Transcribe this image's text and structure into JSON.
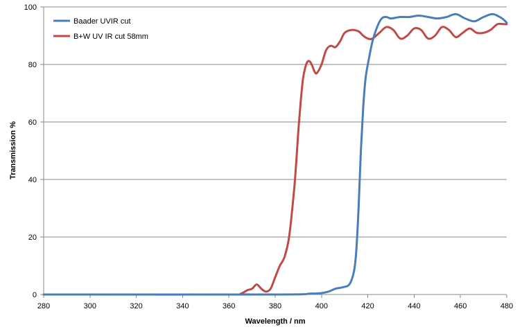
{
  "chart_data": {
    "type": "line",
    "title": "",
    "xlabel": "Wavelength / nm",
    "ylabel": "Transmission %",
    "xlim": [
      280,
      480
    ],
    "ylim": [
      0,
      100
    ],
    "xticks": [
      280,
      300,
      320,
      340,
      360,
      380,
      400,
      420,
      440,
      460,
      480
    ],
    "yticks": [
      0,
      20,
      40,
      60,
      80,
      100
    ],
    "grid": "horizontal",
    "legend_position": "top-left",
    "series": [
      {
        "name": "Baader UVIR cut",
        "color": "#4a7ebb",
        "x": [
          280,
          380,
          395,
          400,
          403,
          406,
          409,
          412,
          414,
          415,
          416,
          417,
          418,
          419,
          420,
          422,
          424,
          426,
          428,
          430,
          434,
          438,
          442,
          446,
          450,
          454,
          458,
          462,
          466,
          470,
          474,
          478,
          480
        ],
        "y": [
          0,
          0,
          0.3,
          0.5,
          1,
          2,
          2.5,
          3.5,
          8,
          15,
          30,
          50,
          65,
          75,
          80,
          88,
          93,
          96,
          96.5,
          96,
          96.5,
          96.5,
          97,
          96.5,
          96,
          96.5,
          97.5,
          96,
          95,
          96.5,
          97.5,
          96,
          94.5
        ]
      },
      {
        "name": "B+W UV IR cut 58mm",
        "color": "#be4b48",
        "x": [
          280,
          362,
          365,
          368,
          370,
          372,
          374,
          376,
          378,
          380,
          382,
          384,
          386,
          388,
          389,
          390,
          391,
          392,
          393,
          394,
          395,
          396,
          397,
          398,
          400,
          402,
          404,
          406,
          408,
          410,
          413,
          416,
          418,
          420,
          422,
          425,
          428,
          431,
          434,
          437,
          440,
          443,
          446,
          449,
          452,
          455,
          458,
          461,
          464,
          467,
          470,
          473,
          476,
          479,
          480
        ],
        "y": [
          0,
          0,
          0.2,
          1.5,
          2,
          3.5,
          2,
          1,
          2,
          6,
          10,
          13,
          20,
          35,
          45,
          57,
          67,
          75,
          79,
          81,
          81,
          79.5,
          77.5,
          77,
          80,
          85,
          86.5,
          86,
          88,
          91,
          92,
          91.5,
          90,
          89,
          89,
          91,
          93,
          92,
          89,
          90,
          92.5,
          92,
          89,
          90,
          93,
          92,
          89.5,
          91,
          92.5,
          91,
          91,
          92,
          94,
          94,
          94
        ]
      }
    ]
  }
}
